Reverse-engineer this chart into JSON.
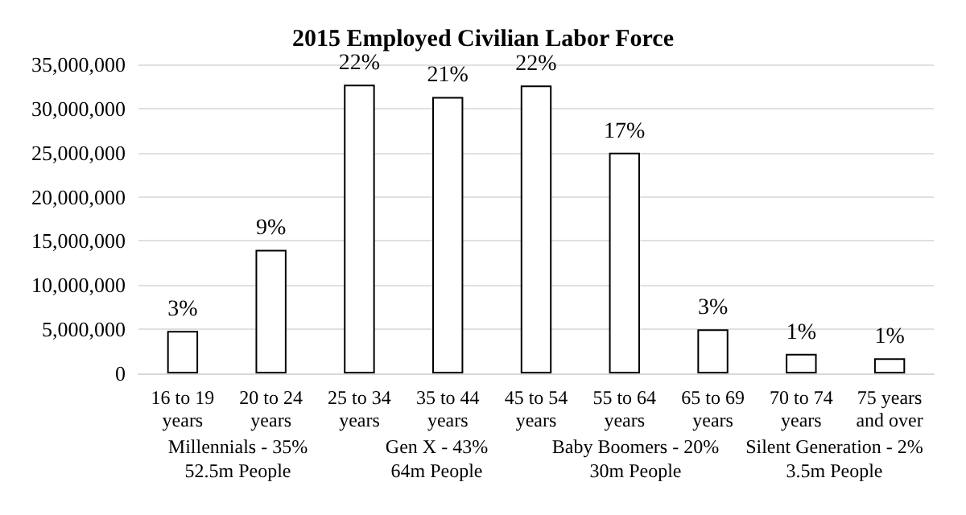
{
  "chart_data": {
    "type": "bar",
    "title": "2015 Employed Civilian Labor Force",
    "categories": [
      "16 to 19\nyears",
      "20 to 24\nyears",
      "25 to 34\nyears",
      "35 to 44\nyears",
      "45 to 54\nyears",
      "55 to 64\nyears",
      "65 to 69\nyears",
      "70 to 74\nyears",
      "75 years\nand over"
    ],
    "values": [
      4800000,
      14000000,
      32700000,
      31300000,
      32600000,
      25000000,
      5000000,
      2200000,
      1700000
    ],
    "colors": [
      "#ffffff",
      "#ffffff",
      "#ffffff",
      "#ffffff",
      "#ffffff",
      "#ffffff",
      "#ffffff",
      "#ffffff",
      "#ffffff"
    ],
    "ylim": [
      0,
      35000000
    ],
    "yticks": [
      0,
      {
        "value": 5000000,
        "label": "5,000,000"
      },
      {
        "value": 10000000,
        "label": "10,000,000"
      },
      {
        "value": 15000000,
        "label": "15,000,000"
      },
      {
        "value": 20000000,
        "label": "20,000,000"
      },
      {
        "value": 25000000,
        "label": "25,000,000"
      },
      {
        "value": 30000000,
        "label": "30,000,000"
      },
      {
        "value": 35000000,
        "label": "35,000,000"
      }
    ],
    "grid": true,
    "annotations": [
      {
        "text": "3%",
        "x": "16 to 19\nyears",
        "y": 4800000
      },
      {
        "text": "9%",
        "x": "20 to 24\nyears",
        "y": 14000000
      },
      {
        "text": "22%",
        "x": "25 to 34\nyears",
        "y": 32700000
      },
      {
        "text": "21%",
        "x": "35 to 44\nyears",
        "y": 31300000
      },
      {
        "text": "22%",
        "x": "45 to 54\nyears",
        "y": 32600000
      },
      {
        "text": "17%",
        "x": "55 to 64\nyears",
        "y": 25000000
      },
      {
        "text": "3%",
        "x": "65 to 69\nyears",
        "y": 5000000
      },
      {
        "text": "1%",
        "x": "70 to 74\nyears",
        "y": 2200000
      },
      {
        "text": "1%",
        "x": "75 years\nand over",
        "y": 1700000
      },
      "Millennials - 35%\n52.5m People",
      "Gen X - 43%\n64m People",
      "Baby Boomers - 20%\n30m People",
      "Silent Generation - 2%\n3.5m People"
    ]
  }
}
